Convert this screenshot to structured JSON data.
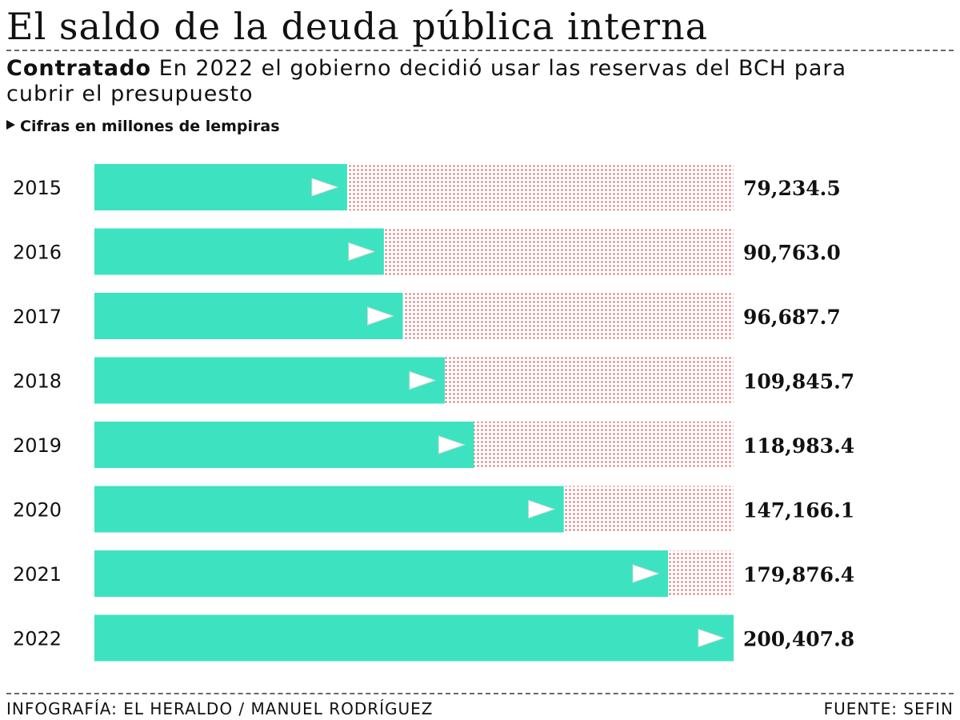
{
  "header": {
    "title": "El saldo de la deuda pública interna",
    "subtitle_bold": "Contratado",
    "subtitle_text": " En 2022 el gobierno decidió usar las reservas del BCH para cubrir el presupuesto",
    "unit_note": "Cifras en millones de lempiras"
  },
  "colors": {
    "bar": "#3de3c0",
    "dots": "#e8434a",
    "arrow": "#ffffff"
  },
  "chart_data": {
    "type": "bar",
    "orientation": "horizontal",
    "categories": [
      "2015",
      "2016",
      "2017",
      "2018",
      "2019",
      "2020",
      "2021",
      "2022"
    ],
    "values": [
      79234.5,
      90763.0,
      96687.7,
      109845.7,
      118983.4,
      147166.1,
      179876.4,
      200407.8
    ],
    "value_labels": [
      "79,234.5",
      "90,763.0",
      "96,687.7",
      "109,845.7",
      "118,983.4",
      "147,166.1",
      "179,876.4",
      "200,407.8"
    ],
    "xlim": [
      0,
      200407.8
    ],
    "grid": false,
    "legend": "none"
  },
  "footer": {
    "credit": "INFOGRAFÍA: EL HERALDO / MANUEL RODRÍGUEZ",
    "source": "FUENTE: SEFIN"
  }
}
